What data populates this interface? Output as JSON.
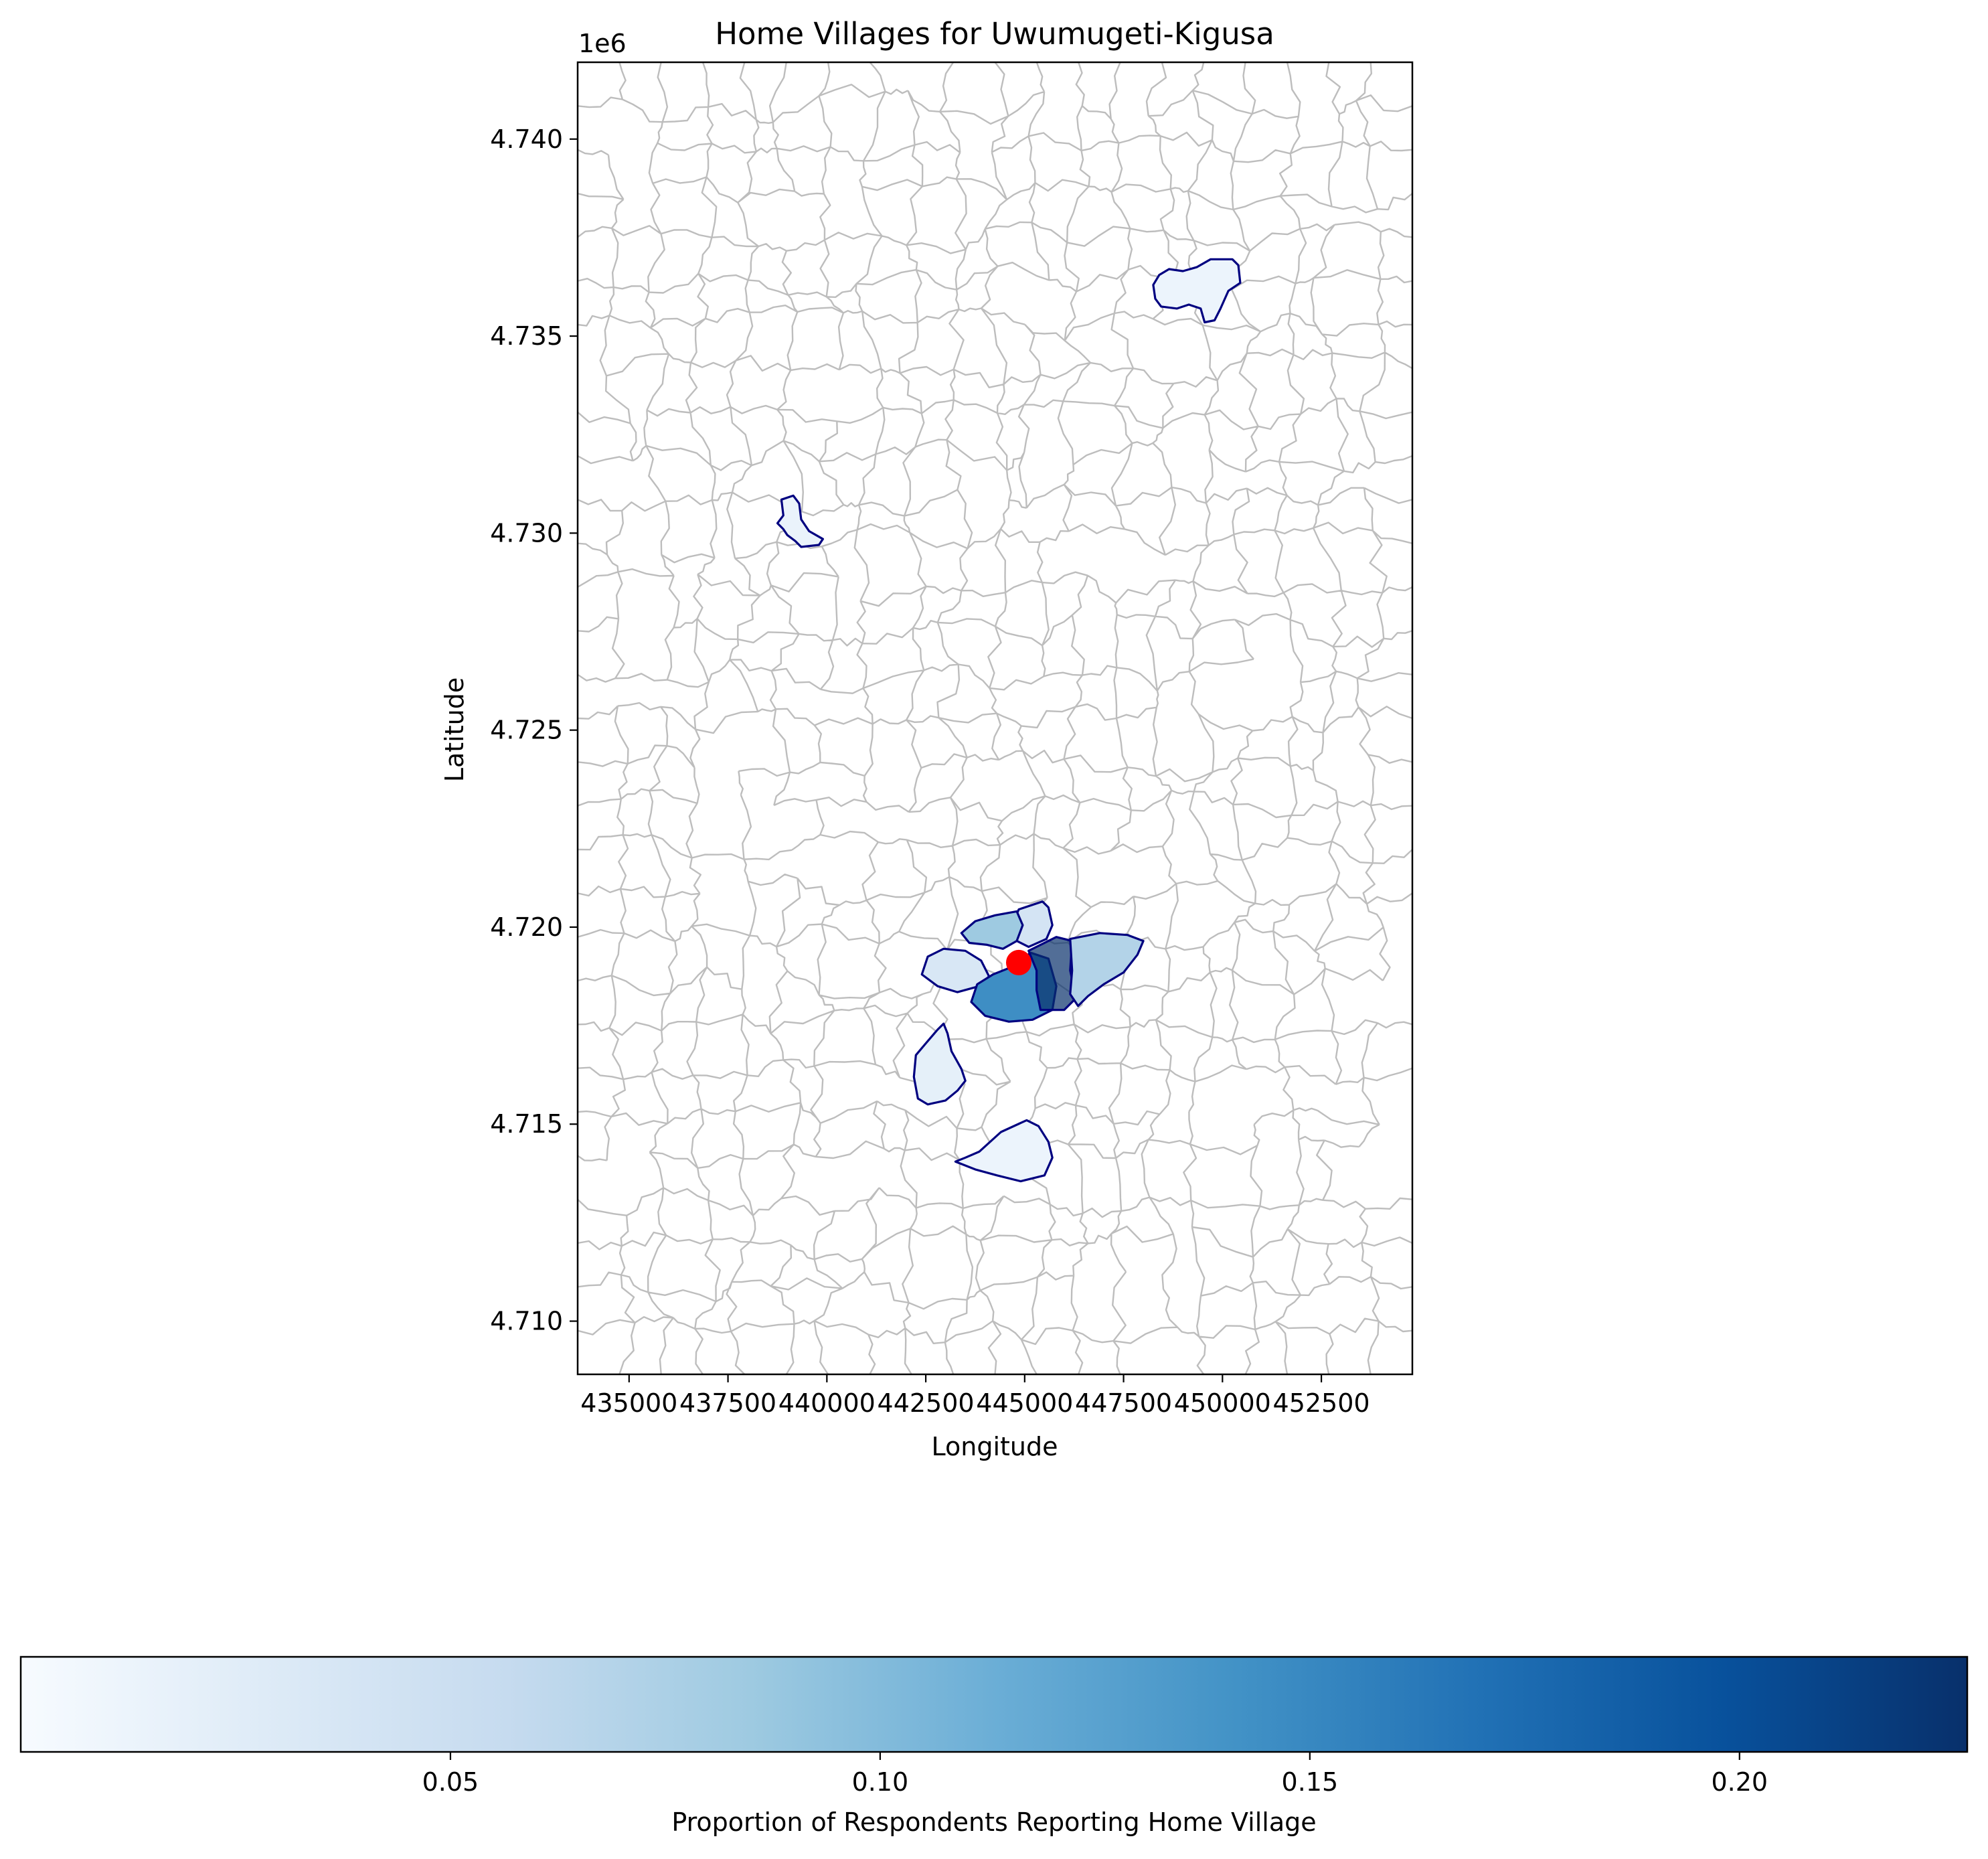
{
  "chart_data": {
    "type": "choropleth map",
    "title": "Home Villages for Uwumugeti-Kigusa",
    "xlabel": "Longitude",
    "ylabel": "Latitude",
    "y_offset_label": "1e6",
    "xlim": [
      433700,
      454800
    ],
    "ylim": [
      4708650,
      4741950
    ],
    "x_ticks": [
      {
        "value": 435000,
        "label": "435000"
      },
      {
        "value": 437500,
        "label": "437500"
      },
      {
        "value": 440000,
        "label": "440000"
      },
      {
        "value": 442500,
        "label": "442500"
      },
      {
        "value": 445000,
        "label": "445000"
      },
      {
        "value": 447500,
        "label": "447500"
      },
      {
        "value": 450000,
        "label": "450000"
      },
      {
        "value": 452500,
        "label": "452500"
      }
    ],
    "y_ticks": [
      {
        "value": 4710000,
        "label": "4.710"
      },
      {
        "value": 4715000,
        "label": "4.715"
      },
      {
        "value": 4720000,
        "label": "4.720"
      },
      {
        "value": 4725000,
        "label": "4.725"
      },
      {
        "value": 4730000,
        "label": "4.730"
      },
      {
        "value": 4735000,
        "label": "4.735"
      },
      {
        "value": 4740000,
        "label": "4.740"
      }
    ],
    "colorbar": {
      "label": "Proportion of Respondents Reporting Home Village",
      "colormap": "Blues",
      "range": [
        0.0,
        0.2265
      ],
      "ticks": [
        {
          "value": 0.05,
          "label": "0.05"
        },
        {
          "value": 0.1,
          "label": "0.10"
        },
        {
          "value": 0.15,
          "label": "0.15"
        },
        {
          "value": 0.2,
          "label": "0.20"
        }
      ],
      "stops": [
        "#f7fbff",
        "#deebf7",
        "#c6dbef",
        "#9ecae1",
        "#6baed6",
        "#4292c6",
        "#2171b5",
        "#08519c",
        "#08306b"
      ]
    },
    "highlighted_villages": [
      {
        "id": "village-north-east",
        "value": 0.012,
        "outline": [
          [
            449350,
            4736750
          ],
          [
            449700,
            4736950
          ],
          [
            450250,
            4736950
          ],
          [
            450400,
            4736800
          ],
          [
            450450,
            4736350
          ],
          [
            450150,
            4736150
          ],
          [
            449950,
            4735700
          ],
          [
            449800,
            4735400
          ],
          [
            449550,
            4735350
          ],
          [
            449450,
            4735700
          ],
          [
            449150,
            4735800
          ],
          [
            448850,
            4735700
          ],
          [
            448450,
            4735750
          ],
          [
            448300,
            4735950
          ],
          [
            448250,
            4736300
          ],
          [
            448400,
            4736550
          ],
          [
            448650,
            4736700
          ],
          [
            449000,
            4736650
          ]
        ]
      },
      {
        "id": "village-north-west",
        "value": 0.015,
        "outline": [
          [
            438850,
            4730850
          ],
          [
            439150,
            4730950
          ],
          [
            439300,
            4730750
          ],
          [
            439350,
            4730350
          ],
          [
            439550,
            4730050
          ],
          [
            439900,
            4729850
          ],
          [
            439800,
            4729700
          ],
          [
            439350,
            4729650
          ],
          [
            439200,
            4729800
          ],
          [
            439000,
            4729950
          ],
          [
            438900,
            4730100
          ],
          [
            438750,
            4730250
          ],
          [
            438900,
            4730450
          ]
        ]
      },
      {
        "id": "village-central-north",
        "value": 0.04,
        "outline": [
          [
            444850,
            4720450
          ],
          [
            445450,
            4720650
          ],
          [
            445600,
            4720500
          ],
          [
            445700,
            4720050
          ],
          [
            445550,
            4719700
          ],
          [
            445100,
            4719500
          ],
          [
            444700,
            4719700
          ],
          [
            444700,
            4720100
          ]
        ]
      },
      {
        "id": "village-central-west",
        "value": 0.085,
        "outline": [
          [
            443750,
            4720150
          ],
          [
            444250,
            4720300
          ],
          [
            444800,
            4720400
          ],
          [
            444950,
            4720050
          ],
          [
            444800,
            4719650
          ],
          [
            444450,
            4719450
          ],
          [
            444050,
            4719550
          ],
          [
            443600,
            4719600
          ],
          [
            443400,
            4719850
          ]
        ]
      },
      {
        "id": "village-west",
        "value": 0.035,
        "outline": [
          [
            442550,
            4719250
          ],
          [
            442950,
            4719450
          ],
          [
            443500,
            4719400
          ],
          [
            443900,
            4719150
          ],
          [
            444100,
            4718750
          ],
          [
            443850,
            4718500
          ],
          [
            443300,
            4718350
          ],
          [
            442800,
            4718500
          ],
          [
            442400,
            4718800
          ]
        ]
      },
      {
        "id": "village-south-central",
        "value": 0.145,
        "outline": [
          [
            444200,
            4718800
          ],
          [
            444700,
            4719000
          ],
          [
            445150,
            4719350
          ],
          [
            445600,
            4719200
          ],
          [
            445800,
            4718500
          ],
          [
            445700,
            4717900
          ],
          [
            445200,
            4717650
          ],
          [
            444600,
            4717600
          ],
          [
            444000,
            4717750
          ],
          [
            443650,
            4718100
          ],
          [
            443800,
            4718550
          ]
        ]
      },
      {
        "id": "village-core",
        "value": 0.2265,
        "outline": [
          [
            445100,
            4719400
          ],
          [
            445800,
            4719750
          ],
          [
            446200,
            4719650
          ],
          [
            446150,
            4718900
          ],
          [
            446300,
            4718200
          ],
          [
            446000,
            4717900
          ],
          [
            445400,
            4717900
          ],
          [
            445300,
            4718400
          ],
          [
            445300,
            4718900
          ]
        ]
      },
      {
        "id": "village-east",
        "value": 0.07,
        "outline": [
          [
            446150,
            4719700
          ],
          [
            446900,
            4719850
          ],
          [
            447600,
            4719800
          ],
          [
            448000,
            4719650
          ],
          [
            447850,
            4719300
          ],
          [
            447500,
            4718850
          ],
          [
            447000,
            4718550
          ],
          [
            446600,
            4718250
          ],
          [
            446350,
            4718000
          ],
          [
            446150,
            4718300
          ],
          [
            446200,
            4718900
          ]
        ]
      },
      {
        "id": "village-south-west",
        "value": 0.02,
        "outline": [
          [
            442800,
            4717400
          ],
          [
            442950,
            4717550
          ],
          [
            443050,
            4717300
          ],
          [
            443150,
            4716850
          ],
          [
            443400,
            4716400
          ],
          [
            443500,
            4716100
          ],
          [
            443300,
            4715850
          ],
          [
            443000,
            4715600
          ],
          [
            442550,
            4715500
          ],
          [
            442300,
            4715650
          ],
          [
            442200,
            4716200
          ],
          [
            442250,
            4716750
          ],
          [
            442500,
            4717050
          ]
        ]
      },
      {
        "id": "village-south",
        "value": 0.012,
        "outline": [
          [
            443850,
            4714300
          ],
          [
            444400,
            4714800
          ],
          [
            445050,
            4715100
          ],
          [
            445350,
            4714950
          ],
          [
            445600,
            4714550
          ],
          [
            445700,
            4714150
          ],
          [
            445500,
            4713700
          ],
          [
            444900,
            4713550
          ],
          [
            444300,
            4713700
          ],
          [
            443750,
            4713850
          ],
          [
            443250,
            4714050
          ],
          [
            443500,
            4714150
          ]
        ]
      }
    ],
    "survey_location": {
      "name": "Uwumugeti-Kigusa",
      "x": 444850,
      "y": 4719100,
      "color": "#ff0000"
    },
    "boundary_color": "#bdbdbd",
    "highlight_outline_color": "#000080"
  }
}
